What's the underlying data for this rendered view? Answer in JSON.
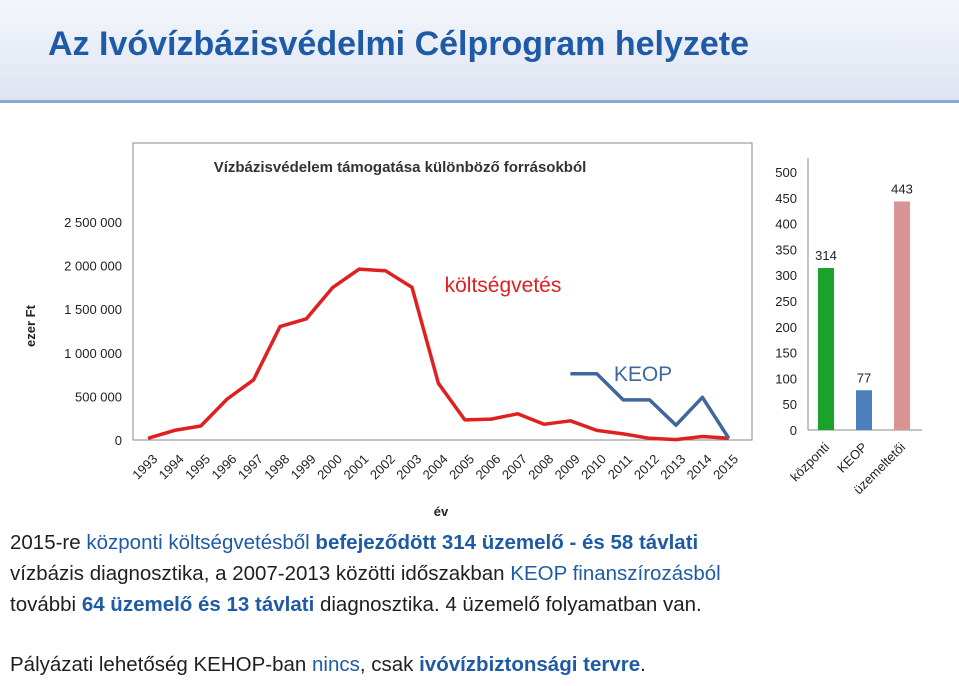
{
  "slide": {
    "title": "Az Ivóvízbázisvédelmi Célprogram helyzete"
  },
  "chart_data": [
    {
      "type": "line",
      "title": "Vízbázisvédelem támogatása különböző forrásokból",
      "xlabel": "év",
      "ylabel": "ezer Ft",
      "x": [
        "1993",
        "1994",
        "1995",
        "1996",
        "1997",
        "1998",
        "1999",
        "2000",
        "2001",
        "2002",
        "2003",
        "2004",
        "2005",
        "2006",
        "2007",
        "2008",
        "2009",
        "2010",
        "2011",
        "2012",
        "2013",
        "2014",
        "2015"
      ],
      "ylim": [
        0,
        2500000
      ],
      "yticks": [
        "0",
        "500 000",
        "1 000 000",
        "1 500 000",
        "2 000 000",
        "2 500 000"
      ],
      "grid": false,
      "series": [
        {
          "name": "költségvetés",
          "color": "#e02020",
          "values": [
            20000,
            110000,
            160000,
            470000,
            690000,
            1300000,
            1390000,
            1750000,
            1960000,
            1940000,
            1750000,
            650000,
            230000,
            240000,
            300000,
            180000,
            220000,
            110000,
            70000,
            20000,
            5000,
            40000,
            20000
          ]
        },
        {
          "name": "KEOP",
          "color": "#3e679f",
          "values": [
            null,
            null,
            null,
            null,
            null,
            null,
            null,
            null,
            null,
            null,
            null,
            null,
            null,
            null,
            null,
            null,
            760000,
            760000,
            460000,
            460000,
            170000,
            490000,
            20000
          ]
        }
      ]
    },
    {
      "type": "bar",
      "categories": [
        "központi",
        "KEOP",
        "üzemeltetői"
      ],
      "values": [
        314,
        77,
        443
      ],
      "colors": [
        "#1aa32a",
        "#4b7fbe",
        "#d99594"
      ],
      "ylim": [
        0,
        500
      ],
      "yticks": [
        "0",
        "50",
        "100",
        "150",
        "200",
        "250",
        "300",
        "350",
        "400",
        "450",
        "500"
      ],
      "data_labels": [
        "314",
        "77",
        "443"
      ]
    }
  ],
  "text": {
    "p1_a": "2015-re ",
    "p1_b": "központi költségvetésből ",
    "p1_c": "befejeződött 314 üzemelő - és 58 távlati",
    "p1_d": "vízbázis diagnosztika, a 2007-2013 közötti időszakban ",
    "p1_e": "KEOP finanszírozásból",
    "p1_f": "további ",
    "p1_g": "64 üzemelő és 13 távlati",
    "p1_h": " diagnosztika. 4 üzemelő folyamatban van.",
    "p2_a": "Pályázati lehetőség KEHOP-ban ",
    "p2_b": "nincs",
    "p2_c": ", csak ",
    "p2_d": "ivóvízbiztonsági tervre",
    "p2_e": "."
  }
}
